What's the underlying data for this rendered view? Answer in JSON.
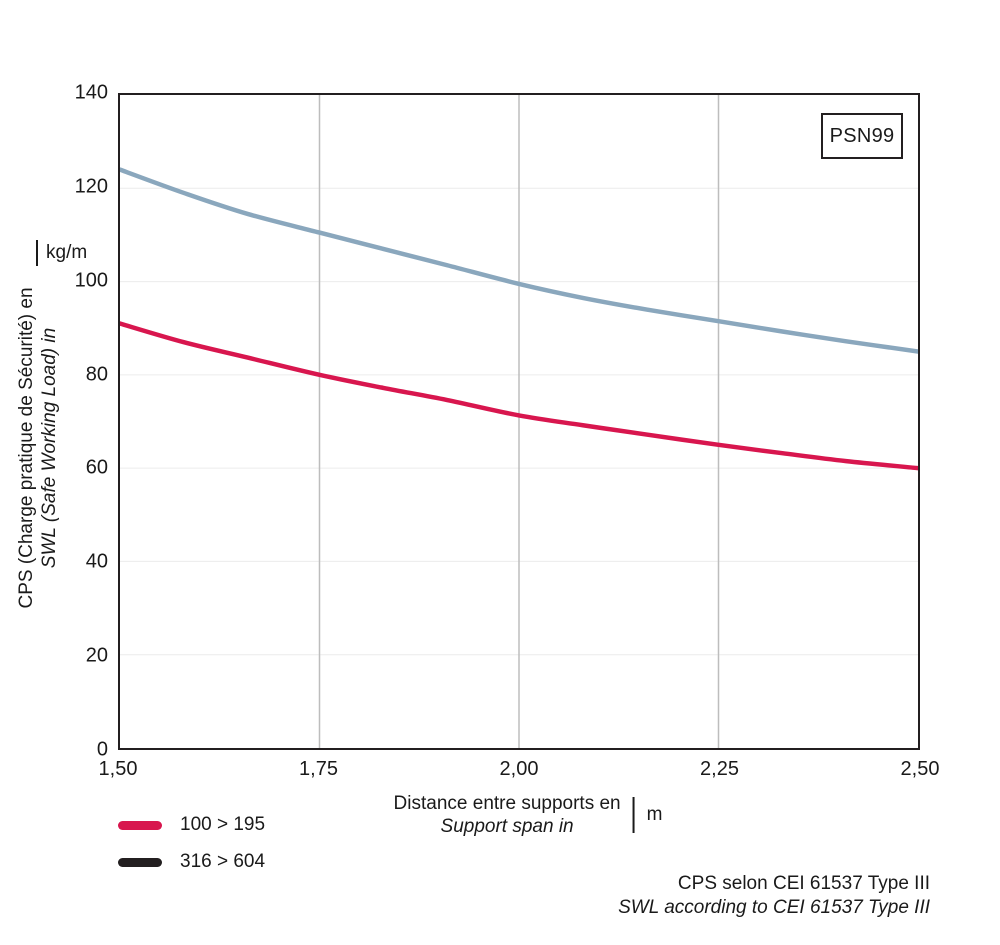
{
  "chart_data": {
    "type": "line",
    "title": "",
    "x": [
      1.5,
      1.58,
      1.66,
      1.75,
      1.83,
      1.91,
      2.0,
      2.08,
      2.16,
      2.25,
      2.33,
      2.41,
      2.5
    ],
    "series": [
      {
        "name": "316 > 604",
        "color": "#8aa7bd",
        "stroke_width": 4.5,
        "values": [
          124,
          119,
          114.5,
          110.5,
          107,
          103.5,
          99.5,
          96.5,
          94,
          91.5,
          89.3,
          87.2,
          85
        ]
      },
      {
        "name": "100 > 195",
        "color": "#d8164e",
        "stroke_width": 4.5,
        "values": [
          91,
          87,
          83.7,
          80,
          77.2,
          74.6,
          71.3,
          69.2,
          67.2,
          65,
          63.2,
          61.5,
          60
        ]
      }
    ],
    "xlim": [
      1.5,
      2.5
    ],
    "ylim": [
      0,
      140
    ],
    "x_ticks": [
      "1,50",
      "1,75",
      "2,00",
      "2,25",
      "2,50"
    ],
    "x_tick_values": [
      1.5,
      1.75,
      2.0,
      2.25,
      2.5
    ],
    "y_ticks": [
      "0",
      "20",
      "40",
      "60",
      "80",
      "100",
      "120",
      "140"
    ],
    "y_tick_values": [
      0,
      20,
      40,
      60,
      80,
      100,
      120,
      140
    ],
    "xlabel_line1": "Distance entre supports en",
    "xlabel_line2": "Support span in",
    "xlabel_unit": "m",
    "ylabel_line1": "CPS (Charge pratique de Sécurité) en",
    "ylabel_line2": "SWL (Safe Working Load) in",
    "ylabel_unit": "kg/m",
    "grid": "vertical-prominent-horizontal-faint",
    "gridline_color_vertical": "#bdbdbd",
    "gridline_color_horizontal": "#ececec",
    "legend_position": "bottom-left"
  },
  "annotation_box": {
    "label": "PSN99"
  },
  "legend": {
    "items": [
      {
        "label": "100 > 195",
        "color": "#d8164e"
      },
      {
        "label": "316 > 604",
        "color": "#231f20"
      }
    ]
  },
  "footer": {
    "line1": "CPS selon CEI 61537 Type III",
    "line2": "SWL according to CEI 61537 Type III"
  }
}
